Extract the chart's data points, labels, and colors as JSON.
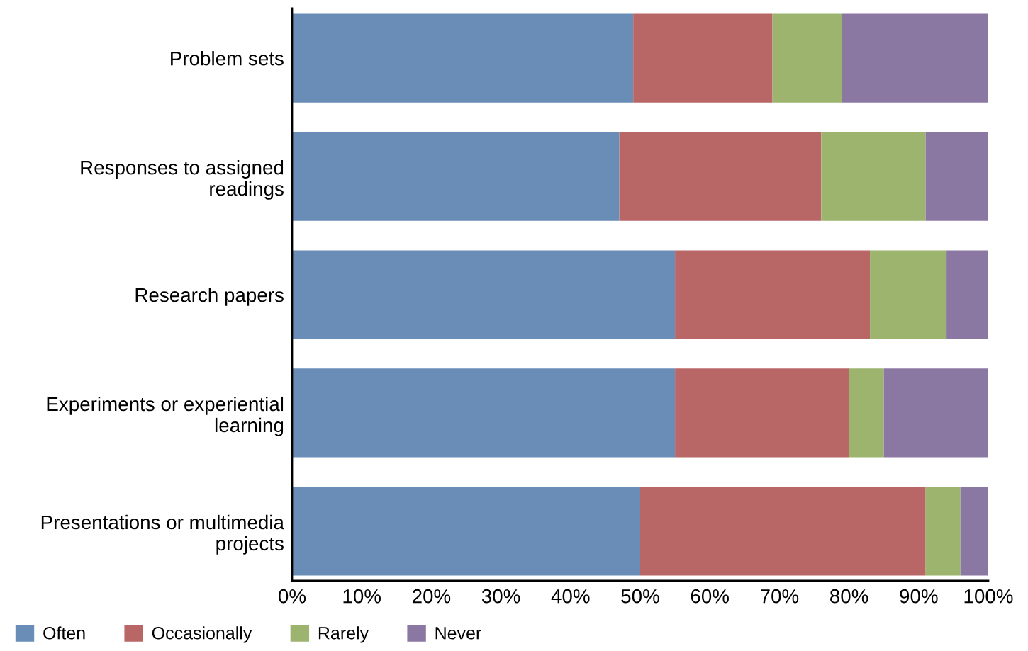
{
  "chart_data": {
    "type": "bar",
    "orientation": "horizontal",
    "stacked": true,
    "legend": "bottom left",
    "grid": false,
    "categories": [
      "Problem sets",
      "Responses to assigned readings",
      "Research papers",
      "Experiments or experiential learning",
      "Presentations or multimedia projects"
    ],
    "series": [
      {
        "name": "Often",
        "color": "#6a8db7",
        "values": [
          49,
          47,
          55,
          55,
          50
        ]
      },
      {
        "name": "Occasionally",
        "color": "#b96666",
        "values": [
          20,
          29,
          28,
          25,
          41
        ]
      },
      {
        "name": "Rarely",
        "color": "#9db46f",
        "values": [
          10,
          15,
          11,
          5,
          5
        ]
      },
      {
        "name": "Never",
        "color": "#8a78a3",
        "values": [
          21,
          9,
          6,
          15,
          4
        ]
      }
    ],
    "xlim": [
      0,
      100
    ],
    "xticks": [
      {
        "value": 0,
        "label": "0%"
      },
      {
        "value": 10,
        "label": "10%"
      },
      {
        "value": 20,
        "label": "20%"
      },
      {
        "value": 30,
        "label": "30%"
      },
      {
        "value": 40,
        "label": "40%"
      },
      {
        "value": 50,
        "label": "50%"
      },
      {
        "value": 60,
        "label": "60%"
      },
      {
        "value": 70,
        "label": "70%"
      },
      {
        "value": 80,
        "label": "80%"
      },
      {
        "value": 90,
        "label": "90%"
      },
      {
        "value": 100,
        "label": "100%"
      }
    ]
  }
}
